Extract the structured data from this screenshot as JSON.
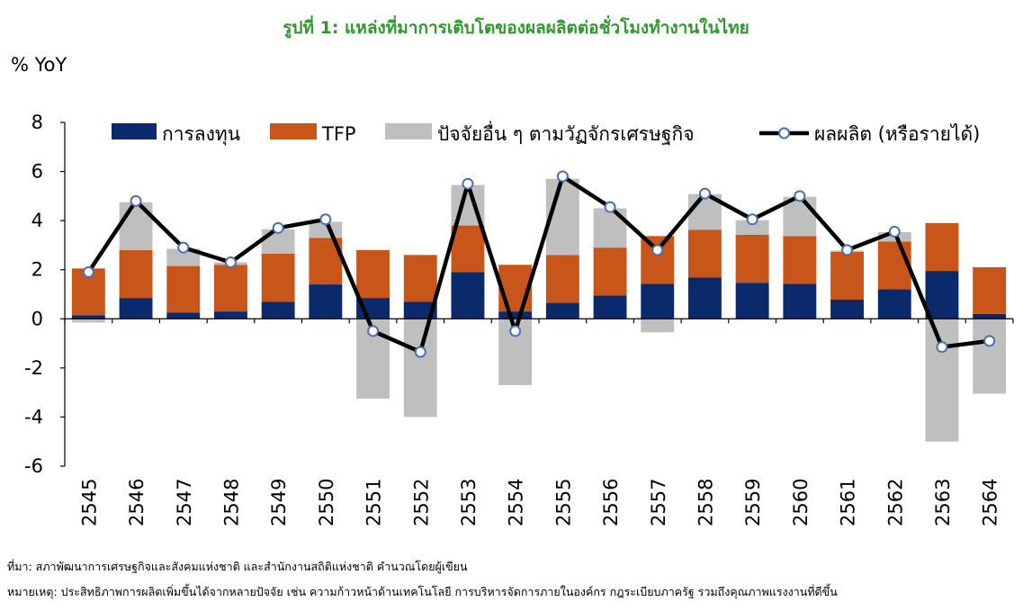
{
  "title": "รูปที่ 1: แหล่งที่มาการเติบโตของผลผลิตต่อชั่วโมงทำงานในไทย",
  "notes": {
    "source": "ที่มา: สภาพัฒนาการเศรษฐกิจและสังคมแห่งชาติ และสำนักงานสถิติแห่งชาติ คำนวณโดยผู้เขียน",
    "remark": "หมายเหตุ: ประสิทธิภาพการผลิตเพิ่มขึ้นได้จากหลายปัจจัย เช่น ความก้าวหน้าด้านเทคโนโลยี การบริหารจัดการภายในองค์กร กฎระเบียบภาครัฐ รวมถึงคุณภาพแรงงานที่ดีขึ้น"
  },
  "chart_data": {
    "type": "bar",
    "stacked": true,
    "ylabel": "% YoY",
    "ylim": [
      -6,
      8
    ],
    "yticks": [
      8,
      6,
      4,
      2,
      0,
      -2,
      -4,
      -6
    ],
    "legend_position": "top",
    "categories": [
      "2545",
      "2546",
      "2547",
      "2548",
      "2549",
      "2550",
      "2551",
      "2552",
      "2553",
      "2554",
      "2555",
      "2556",
      "2557",
      "2558",
      "2559",
      "2560",
      "2561",
      "2562",
      "2563",
      "2564"
    ],
    "series": [
      {
        "name": "การลงทุน",
        "kind": "bar",
        "color": "#0a2a6b",
        "values": [
          0.15,
          0.85,
          0.25,
          0.3,
          0.7,
          1.4,
          0.85,
          0.7,
          1.9,
          0.3,
          0.65,
          0.95,
          1.42,
          1.68,
          1.47,
          1.42,
          0.78,
          1.2,
          1.95,
          0.2
        ]
      },
      {
        "name": "TFP",
        "kind": "bar",
        "color": "#c8561a",
        "values": [
          1.9,
          1.95,
          1.9,
          1.9,
          1.95,
          1.9,
          1.95,
          1.9,
          1.9,
          1.9,
          1.95,
          1.95,
          1.95,
          1.95,
          1.95,
          1.95,
          1.95,
          1.95,
          1.95,
          1.9
        ]
      },
      {
        "name": "ปัจจัยอื่น ๆ ตามวัฏจักรเศรษฐกิจ",
        "kind": "bar",
        "color": "#bfbfbf",
        "values": [
          -0.15,
          1.95,
          0.7,
          0.1,
          1.0,
          0.65,
          -3.25,
          -4.0,
          1.65,
          -2.7,
          3.1,
          1.6,
          -0.55,
          1.45,
          0.6,
          1.6,
          0.05,
          0.38,
          -5.0,
          -3.05
        ]
      },
      {
        "name": "ผลผลิต (หรือรายได้)",
        "kind": "line",
        "color": "#000000",
        "values": [
          1.9,
          4.8,
          2.9,
          2.3,
          3.7,
          4.05,
          -0.5,
          -1.35,
          5.5,
          -0.5,
          5.8,
          4.55,
          2.8,
          5.1,
          4.05,
          5.0,
          2.8,
          3.55,
          -1.15,
          -0.9
        ]
      }
    ]
  }
}
